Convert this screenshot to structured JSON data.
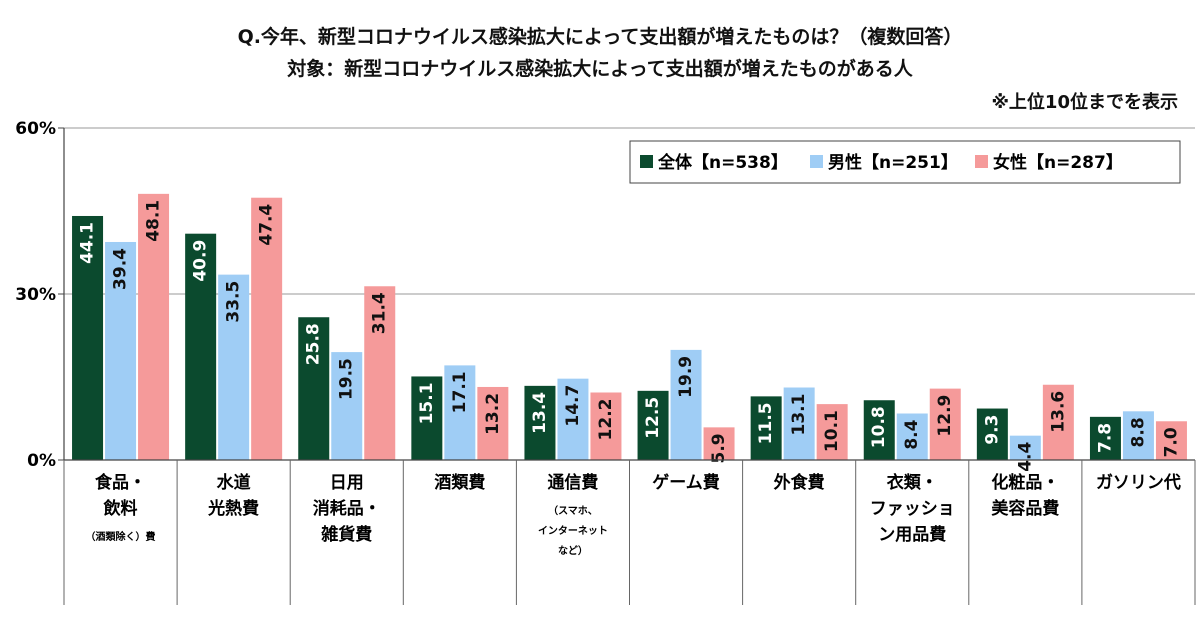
{
  "header": {
    "question": "Q.今年、新型コロナウイルス感染拡大によって支出額が増えたものは？（複数回答）",
    "target": "対象：新型コロナウイルス感染拡大によって支出額が増えたものがある人",
    "note": "※上位10位までを表示"
  },
  "colors": {
    "all": "#0b4a2e",
    "male": "#9fcdf5",
    "female": "#f59a9a"
  },
  "chart_data": {
    "type": "bar",
    "ylim": [
      0,
      60
    ],
    "yticks": [
      "0%",
      "30%",
      "60%"
    ],
    "ytick_values": [
      0,
      30,
      60
    ],
    "legend_position": "top-right",
    "categories": [
      [
        "食品・",
        "飲料",
        "（酒類除く）費"
      ],
      [
        "水道",
        "光熱費"
      ],
      [
        "日用",
        "消耗品・",
        "雑貨費"
      ],
      [
        "酒類費"
      ],
      [
        "通信費",
        "（スマホ、",
        "インターネット",
        "など）"
      ],
      [
        "ゲーム費"
      ],
      [
        "外食費"
      ],
      [
        "衣類・",
        "ファッショ",
        "ン用品費"
      ],
      [
        "化粧品・",
        "美容品費"
      ],
      [
        "ガソリン代"
      ]
    ],
    "series": [
      {
        "name": "全体【n=538】",
        "values": [
          44.1,
          40.9,
          25.8,
          15.1,
          13.4,
          12.5,
          11.5,
          10.8,
          9.3,
          7.8
        ]
      },
      {
        "name": "男性【n=251】",
        "values": [
          39.4,
          33.5,
          19.5,
          17.1,
          14.7,
          19.9,
          13.1,
          8.4,
          4.4,
          8.8
        ]
      },
      {
        "name": "女性【n=287】",
        "values": [
          48.1,
          47.4,
          31.4,
          13.2,
          12.2,
          5.9,
          10.1,
          12.9,
          13.6,
          7.0
        ]
      }
    ]
  }
}
